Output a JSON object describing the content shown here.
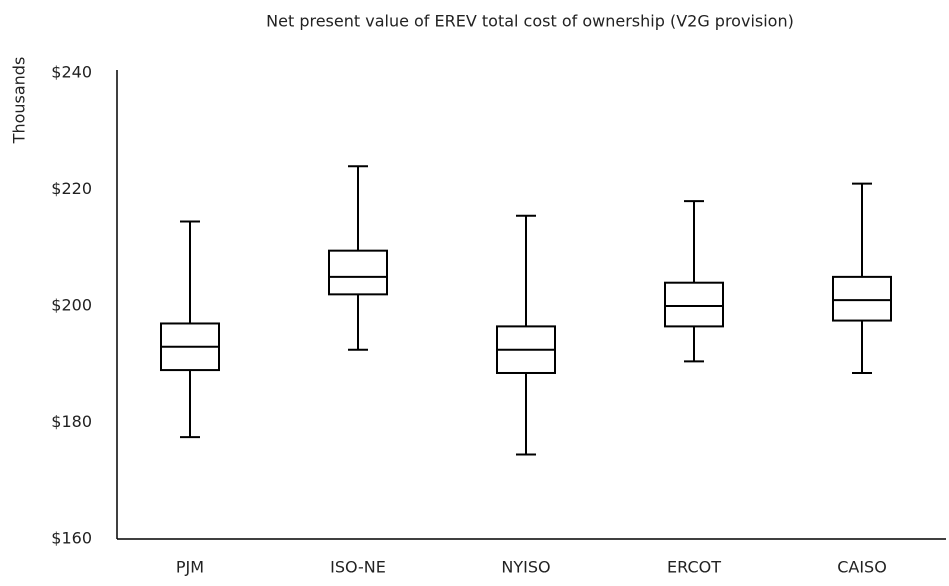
{
  "chart_data": {
    "type": "box",
    "title": "Net present value of EREV total cost of ownership (V2G provision)",
    "y_label": "Thousands",
    "categories": [
      "PJM",
      "ISO-NE",
      "NYISO",
      "ERCOT",
      "CAISO"
    ],
    "min": [
      177.5,
      192.5,
      174.5,
      190.5,
      188.5
    ],
    "q1": [
      189,
      202,
      188.5,
      196.5,
      197.5
    ],
    "median": [
      193,
      205,
      192.5,
      200,
      201
    ],
    "q3": [
      197,
      209.5,
      196.5,
      204,
      205
    ],
    "max": [
      214.5,
      224,
      215.5,
      218,
      221
    ],
    "color": "#000000",
    "ylim": [
      160,
      240
    ],
    "yticks": [
      {
        "value": 160,
        "label": "$160"
      },
      {
        "value": 180,
        "label": "$180"
      },
      {
        "value": 200,
        "label": "$200"
      },
      {
        "value": 220,
        "label": "$220"
      },
      {
        "value": 240,
        "label": "$240"
      }
    ],
    "grid": false
  }
}
